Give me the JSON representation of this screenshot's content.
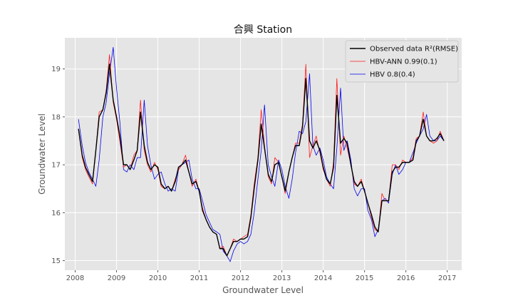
{
  "chart_data": {
    "type": "line",
    "title": "合興 Station",
    "xlabel": "Groundwater Level",
    "ylabel": "Groundwater Level",
    "xlim": [
      2007.75,
      2017.35
    ],
    "ylim": [
      14.8,
      19.65
    ],
    "x_ticks": [
      2008,
      2009,
      2010,
      2011,
      2012,
      2013,
      2014,
      2015,
      2016,
      2017
    ],
    "y_ticks": [
      15,
      16,
      17,
      18,
      19
    ],
    "grid": true,
    "legend_position": "top-right",
    "x": [
      2008.08,
      2008.17,
      2008.25,
      2008.33,
      2008.42,
      2008.5,
      2008.58,
      2008.67,
      2008.75,
      2008.83,
      2008.92,
      2009.0,
      2009.08,
      2009.17,
      2009.25,
      2009.33,
      2009.42,
      2009.5,
      2009.58,
      2009.67,
      2009.75,
      2009.83,
      2009.92,
      2010.0,
      2010.08,
      2010.17,
      2010.25,
      2010.33,
      2010.42,
      2010.5,
      2010.58,
      2010.67,
      2010.75,
      2010.83,
      2010.92,
      2011.0,
      2011.08,
      2011.17,
      2011.25,
      2011.33,
      2011.42,
      2011.5,
      2011.58,
      2011.67,
      2011.75,
      2011.83,
      2011.92,
      2012.0,
      2012.08,
      2012.17,
      2012.25,
      2012.33,
      2012.42,
      2012.5,
      2012.58,
      2012.67,
      2012.75,
      2012.83,
      2012.92,
      2013.0,
      2013.08,
      2013.17,
      2013.25,
      2013.33,
      2013.42,
      2013.5,
      2013.58,
      2013.67,
      2013.75,
      2013.83,
      2013.92,
      2014.0,
      2014.08,
      2014.17,
      2014.25,
      2014.33,
      2014.42,
      2014.5,
      2014.58,
      2014.67,
      2014.75,
      2014.83,
      2014.92,
      2015.0,
      2015.08,
      2015.17,
      2015.25,
      2015.33,
      2015.42,
      2015.5,
      2015.58,
      2015.67,
      2015.75,
      2015.83,
      2015.92,
      2016.0,
      2016.08,
      2016.17,
      2016.25,
      2016.33,
      2016.42,
      2016.5,
      2016.58,
      2016.67,
      2016.75,
      2016.83,
      2016.92
    ],
    "series": [
      {
        "name": "Observed data $R^2$(RMSE)",
        "color": "#000000",
        "values": [
          17.75,
          17.2,
          16.95,
          16.8,
          16.65,
          17.3,
          18.0,
          18.15,
          18.5,
          19.1,
          18.35,
          18.0,
          17.6,
          17.0,
          17.0,
          16.9,
          17.1,
          17.3,
          18.1,
          17.4,
          17.05,
          16.9,
          17.0,
          16.95,
          16.6,
          16.5,
          16.55,
          16.45,
          16.65,
          16.95,
          17.0,
          17.1,
          16.85,
          16.6,
          16.65,
          16.45,
          16.05,
          15.85,
          15.7,
          15.6,
          15.55,
          15.25,
          15.25,
          15.1,
          15.25,
          15.4,
          15.4,
          15.45,
          15.45,
          15.5,
          15.9,
          16.5,
          17.1,
          17.85,
          17.35,
          16.8,
          16.65,
          17.0,
          17.05,
          16.75,
          16.45,
          16.85,
          17.15,
          17.4,
          17.4,
          17.8,
          18.8,
          17.5,
          17.35,
          17.5,
          17.3,
          16.95,
          16.7,
          16.6,
          16.95,
          18.45,
          17.45,
          17.55,
          17.45,
          17.0,
          16.65,
          16.55,
          16.65,
          16.45,
          16.2,
          15.95,
          15.7,
          15.6,
          16.25,
          16.25,
          16.25,
          16.85,
          16.95,
          16.95,
          17.05,
          17.05,
          17.05,
          17.1,
          17.5,
          17.6,
          17.95,
          17.6,
          17.5,
          17.5,
          17.55,
          17.65,
          17.5
        ]
      },
      {
        "name": "HBV-ANN 0.99(0.1)",
        "color": "#ff1a1a",
        "values": [
          17.75,
          17.15,
          16.9,
          16.75,
          16.6,
          17.3,
          18.1,
          18.15,
          18.55,
          19.3,
          18.3,
          17.95,
          17.5,
          16.95,
          17.0,
          16.9,
          17.2,
          17.3,
          18.35,
          17.3,
          17.0,
          16.85,
          17.05,
          16.9,
          16.55,
          16.5,
          16.55,
          16.45,
          16.7,
          16.9,
          17.0,
          17.2,
          16.85,
          16.55,
          16.7,
          16.45,
          16.1,
          15.85,
          15.7,
          15.6,
          15.55,
          15.25,
          15.3,
          15.1,
          15.25,
          15.45,
          15.4,
          15.45,
          15.5,
          15.55,
          15.95,
          16.6,
          17.15,
          18.15,
          17.4,
          16.75,
          16.6,
          17.15,
          17.05,
          16.75,
          16.4,
          16.85,
          17.15,
          17.45,
          17.45,
          17.85,
          19.1,
          17.15,
          17.4,
          17.6,
          17.25,
          16.9,
          16.7,
          16.55,
          17.05,
          18.8,
          17.2,
          17.6,
          17.35,
          17.0,
          16.6,
          16.55,
          16.7,
          16.45,
          16.2,
          15.9,
          15.65,
          15.6,
          16.4,
          16.25,
          16.25,
          17.0,
          17.0,
          16.9,
          17.1,
          17.05,
          17.05,
          17.15,
          17.55,
          17.6,
          18.1,
          17.6,
          17.5,
          17.45,
          17.5,
          17.7,
          17.5
        ]
      },
      {
        "name": "HBV 0.8(0.4)",
        "color": "#0000ee",
        "values": [
          17.95,
          17.4,
          17.05,
          16.85,
          16.7,
          16.55,
          17.1,
          18.0,
          18.3,
          18.9,
          19.45,
          18.6,
          17.9,
          16.9,
          16.85,
          17.0,
          16.9,
          17.15,
          17.15,
          18.35,
          17.4,
          17.0,
          16.7,
          16.8,
          16.85,
          16.6,
          16.45,
          16.5,
          16.45,
          16.9,
          17.0,
          17.05,
          17.1,
          16.7,
          16.5,
          16.5,
          16.25,
          15.95,
          15.8,
          15.65,
          15.6,
          15.55,
          15.2,
          15.1,
          14.98,
          15.2,
          15.35,
          15.4,
          15.35,
          15.4,
          15.55,
          16.0,
          16.7,
          17.3,
          18.25,
          17.0,
          16.75,
          16.55,
          17.1,
          16.9,
          16.55,
          16.3,
          16.7,
          17.25,
          17.7,
          17.65,
          17.9,
          18.9,
          17.4,
          17.2,
          17.35,
          17.1,
          16.75,
          16.6,
          16.5,
          17.35,
          18.6,
          17.3,
          17.5,
          17.1,
          16.5,
          16.35,
          16.5,
          16.5,
          16.05,
          15.85,
          15.5,
          15.65,
          16.25,
          16.3,
          16.2,
          16.8,
          17.0,
          16.8,
          16.9,
          17.05,
          17.05,
          17.25,
          17.45,
          17.6,
          17.75,
          18.05,
          17.6,
          17.5,
          17.5,
          17.6,
          17.5
        ]
      }
    ]
  }
}
